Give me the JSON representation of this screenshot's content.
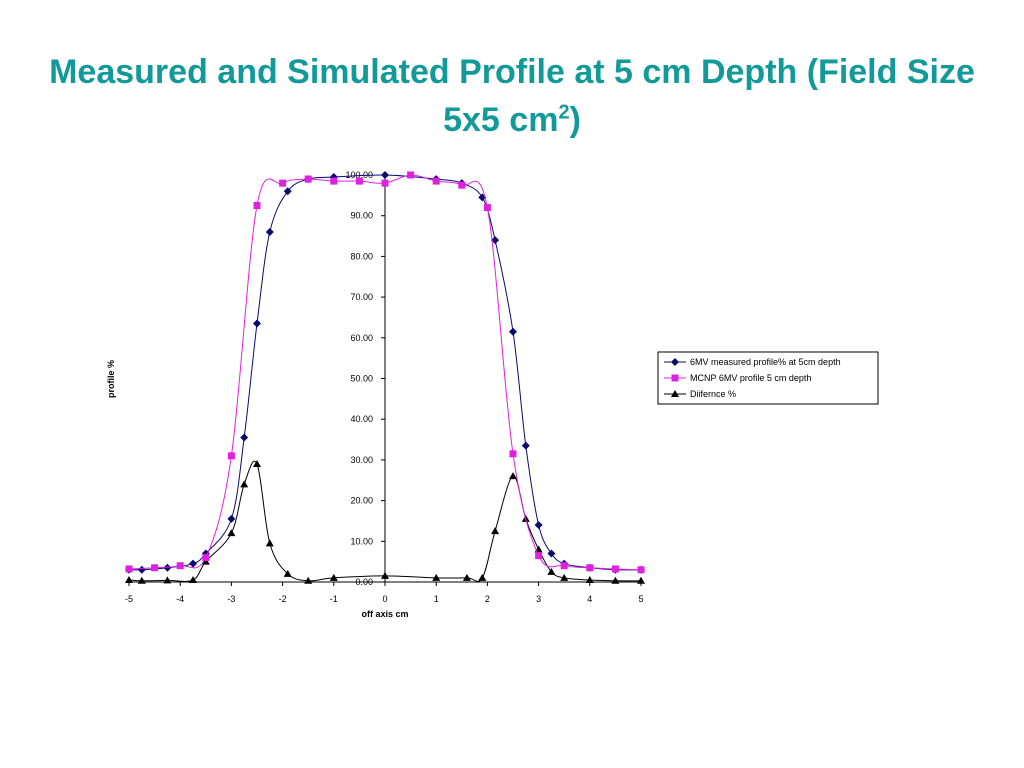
{
  "slide": {
    "title_main": "Measured and Simulated Profile at 5 cm Depth (Field Size 5x5 cm",
    "title_sup": "2",
    "title_end": ")"
  },
  "chart_data": {
    "type": "line",
    "title": "",
    "xlabel": "off axis cm",
    "ylabel": "profile %",
    "xlim": [
      -5,
      5
    ],
    "ylim": [
      0,
      100
    ],
    "x_ticks": [
      "-5",
      "-4",
      "-3",
      "-2",
      "-1",
      "0",
      "1",
      "2",
      "3",
      "4",
      "5"
    ],
    "y_ticks": [
      "0.00",
      "10.00",
      "20.00",
      "30.00",
      "40.00",
      "50.00",
      "60.00",
      "70.00",
      "80.00",
      "90.00",
      "100.00"
    ],
    "grid": false,
    "legend_position": "right",
    "series": [
      {
        "name": "6MV measured profile% at 5cm depth",
        "color": "#0a0a6e",
        "marker": "diamond",
        "points": [
          [
            -5.0,
            3.0
          ],
          [
            -4.75,
            3.0
          ],
          [
            -4.25,
            3.5
          ],
          [
            -3.75,
            4.5
          ],
          [
            -3.5,
            7.0
          ],
          [
            -3.0,
            15.5
          ],
          [
            -2.75,
            35.5
          ],
          [
            -2.5,
            63.5
          ],
          [
            -2.25,
            86.0
          ],
          [
            -1.9,
            96.0
          ],
          [
            -1.5,
            99.0
          ],
          [
            -1.0,
            99.5
          ],
          [
            0.0,
            100.0
          ],
          [
            1.0,
            99.0
          ],
          [
            1.5,
            98.0
          ],
          [
            1.9,
            94.5
          ],
          [
            2.15,
            84.0
          ],
          [
            2.5,
            61.5
          ],
          [
            2.75,
            33.5
          ],
          [
            3.0,
            14.0
          ],
          [
            3.25,
            7.0
          ],
          [
            3.5,
            4.5
          ],
          [
            4.0,
            3.5
          ],
          [
            4.5,
            3.0
          ],
          [
            5.0,
            3.0
          ]
        ]
      },
      {
        "name": "MCNP 6MV profile 5 cm depth",
        "color": "#e020e0",
        "marker": "square",
        "points": [
          [
            -5.0,
            3.2
          ],
          [
            -4.5,
            3.5
          ],
          [
            -4.0,
            4.0
          ],
          [
            -3.5,
            6.0
          ],
          [
            -3.0,
            31.0
          ],
          [
            -2.5,
            92.5
          ],
          [
            -2.0,
            98.0
          ],
          [
            -1.5,
            99.0
          ],
          [
            -1.0,
            98.5
          ],
          [
            -0.5,
            98.5
          ],
          [
            0.0,
            98.0
          ],
          [
            0.5,
            100.0
          ],
          [
            1.0,
            98.5
          ],
          [
            1.5,
            97.5
          ],
          [
            2.0,
            92.0
          ],
          [
            2.5,
            31.5
          ],
          [
            3.0,
            6.5
          ],
          [
            3.5,
            4.0
          ],
          [
            4.0,
            3.5
          ],
          [
            4.5,
            3.2
          ],
          [
            5.0,
            3.0
          ]
        ]
      },
      {
        "name": "Diifernce %",
        "color": "#000000",
        "marker": "triangle",
        "points": [
          [
            -5.0,
            0.5
          ],
          [
            -4.75,
            0.3
          ],
          [
            -4.25,
            0.4
          ],
          [
            -3.75,
            0.5
          ],
          [
            -3.5,
            5.0
          ],
          [
            -3.0,
            12.0
          ],
          [
            -2.75,
            24.0
          ],
          [
            -2.5,
            29.0
          ],
          [
            -2.25,
            9.5
          ],
          [
            -1.9,
            2.0
          ],
          [
            -1.5,
            0.3
          ],
          [
            -1.0,
            1.0
          ],
          [
            0.0,
            1.5
          ],
          [
            1.0,
            1.0
          ],
          [
            1.6,
            1.0
          ],
          [
            1.9,
            1.0
          ],
          [
            2.15,
            12.5
          ],
          [
            2.5,
            26.0
          ],
          [
            2.75,
            15.5
          ],
          [
            3.0,
            8.0
          ],
          [
            3.25,
            2.5
          ],
          [
            3.5,
            1.0
          ],
          [
            4.0,
            0.5
          ],
          [
            4.5,
            0.3
          ],
          [
            5.0,
            0.3
          ]
        ]
      }
    ]
  }
}
